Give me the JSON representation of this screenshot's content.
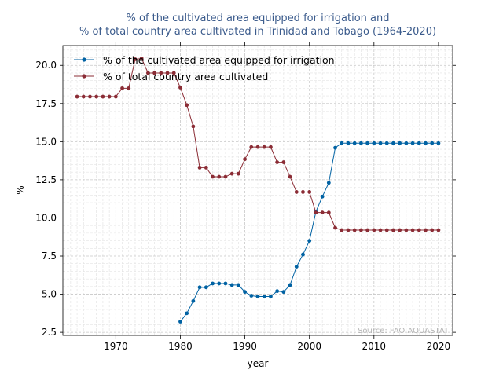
{
  "chart_data": {
    "type": "line",
    "title_line1": "% of the cultivated area equipped for irrigation and",
    "title_line2": "% of total country area cultivated in Trinidad and Tobago (1964-2020)",
    "xlabel": "year",
    "ylabel": "%",
    "source": "Source: FAO AQUASTAT",
    "xlim": [
      1961.8,
      2022.2
    ],
    "ylim": [
      2.3,
      21.3
    ],
    "xticks": [
      1970,
      1980,
      1990,
      2000,
      2010,
      2020
    ],
    "yticks": [
      2.5,
      5.0,
      7.5,
      10.0,
      12.5,
      15.0,
      17.5,
      20.0
    ],
    "ytick_labels": [
      "2.5",
      "5.0",
      "7.5",
      "10.0",
      "12.5",
      "15.0",
      "17.5",
      "20.0"
    ],
    "grid": true,
    "legend_position": "upper-left",
    "series": [
      {
        "name": "% of the cultivated area equipped for irrigation",
        "color": "#0062a3",
        "x": [
          1980,
          1981,
          1982,
          1983,
          1984,
          1985,
          1986,
          1987,
          1988,
          1989,
          1990,
          1991,
          1992,
          1993,
          1994,
          1995,
          1996,
          1997,
          1998,
          1999,
          2000,
          2001,
          2002,
          2003,
          2004,
          2005,
          2006,
          2007,
          2008,
          2009,
          2010,
          2011,
          2012,
          2013,
          2014,
          2015,
          2016,
          2017,
          2018,
          2019,
          2020
        ],
        "values": [
          3.2,
          3.75,
          4.55,
          5.45,
          5.45,
          5.7,
          5.7,
          5.7,
          5.6,
          5.6,
          5.15,
          4.9,
          4.85,
          4.85,
          4.85,
          5.2,
          5.15,
          5.6,
          6.8,
          7.6,
          8.5,
          10.4,
          11.4,
          12.3,
          14.6,
          14.9,
          14.9,
          14.9,
          14.9,
          14.9,
          14.9,
          14.9,
          14.9,
          14.9,
          14.9,
          14.9,
          14.9,
          14.9,
          14.9,
          14.9,
          14.9
        ]
      },
      {
        "name": "% of total country area cultivated",
        "color": "#8b2c35",
        "x": [
          1964,
          1965,
          1966,
          1967,
          1968,
          1969,
          1970,
          1971,
          1972,
          1973,
          1974,
          1975,
          1976,
          1977,
          1978,
          1979,
          1980,
          1981,
          1982,
          1983,
          1984,
          1985,
          1986,
          1987,
          1988,
          1989,
          1990,
          1991,
          1992,
          1993,
          1994,
          1995,
          1996,
          1997,
          1998,
          1999,
          2000,
          2001,
          2002,
          2003,
          2004,
          2005,
          2006,
          2007,
          2008,
          2009,
          2010,
          2011,
          2012,
          2013,
          2014,
          2015,
          2016,
          2017,
          2018,
          2019,
          2020
        ],
        "values": [
          17.95,
          17.95,
          17.95,
          17.95,
          17.95,
          17.95,
          17.95,
          18.5,
          18.5,
          20.4,
          20.45,
          19.5,
          19.5,
          19.5,
          19.5,
          19.5,
          18.55,
          17.4,
          16.0,
          13.3,
          13.3,
          12.7,
          12.7,
          12.7,
          12.9,
          12.9,
          13.85,
          14.65,
          14.65,
          14.65,
          14.65,
          13.65,
          13.65,
          12.7,
          11.7,
          11.7,
          11.7,
          10.35,
          10.35,
          10.35,
          9.35,
          9.2,
          9.2,
          9.2,
          9.2,
          9.2,
          9.2,
          9.2,
          9.2,
          9.2,
          9.2,
          9.2,
          9.2,
          9.2,
          9.2,
          9.2,
          9.2
        ]
      }
    ]
  }
}
